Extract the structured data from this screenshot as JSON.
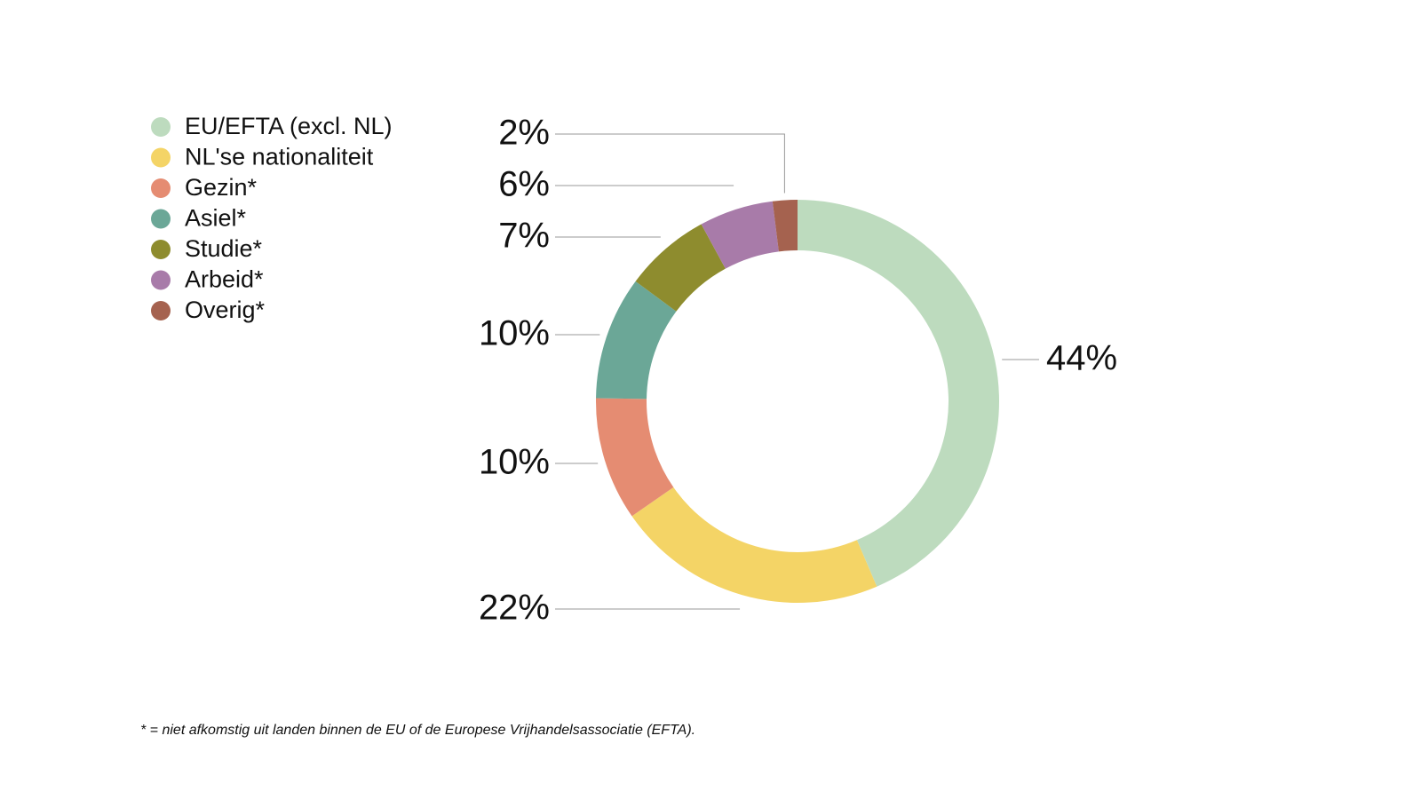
{
  "chart_data": {
    "type": "pie",
    "categories": [
      "EU/EFTA (excl. NL)",
      "NL'se nationaliteit",
      "Gezin*",
      "Asiel*",
      "Studie*",
      "Arbeid*",
      "Overig*"
    ],
    "values": [
      44,
      22,
      10,
      10,
      7,
      6,
      2
    ],
    "value_labels": [
      "44%",
      "22%",
      "10%",
      "10%",
      "7%",
      "6%",
      "2%"
    ],
    "colors": [
      "#bddbbe",
      "#f4d466",
      "#e58c72",
      "#6ba797",
      "#8e8c2e",
      "#a87ba9",
      "#a5624f"
    ],
    "footnote": "* = niet afkomstig uit landen binnen de EU of de Europese Vrijhandelsassociatie (EFTA)."
  }
}
